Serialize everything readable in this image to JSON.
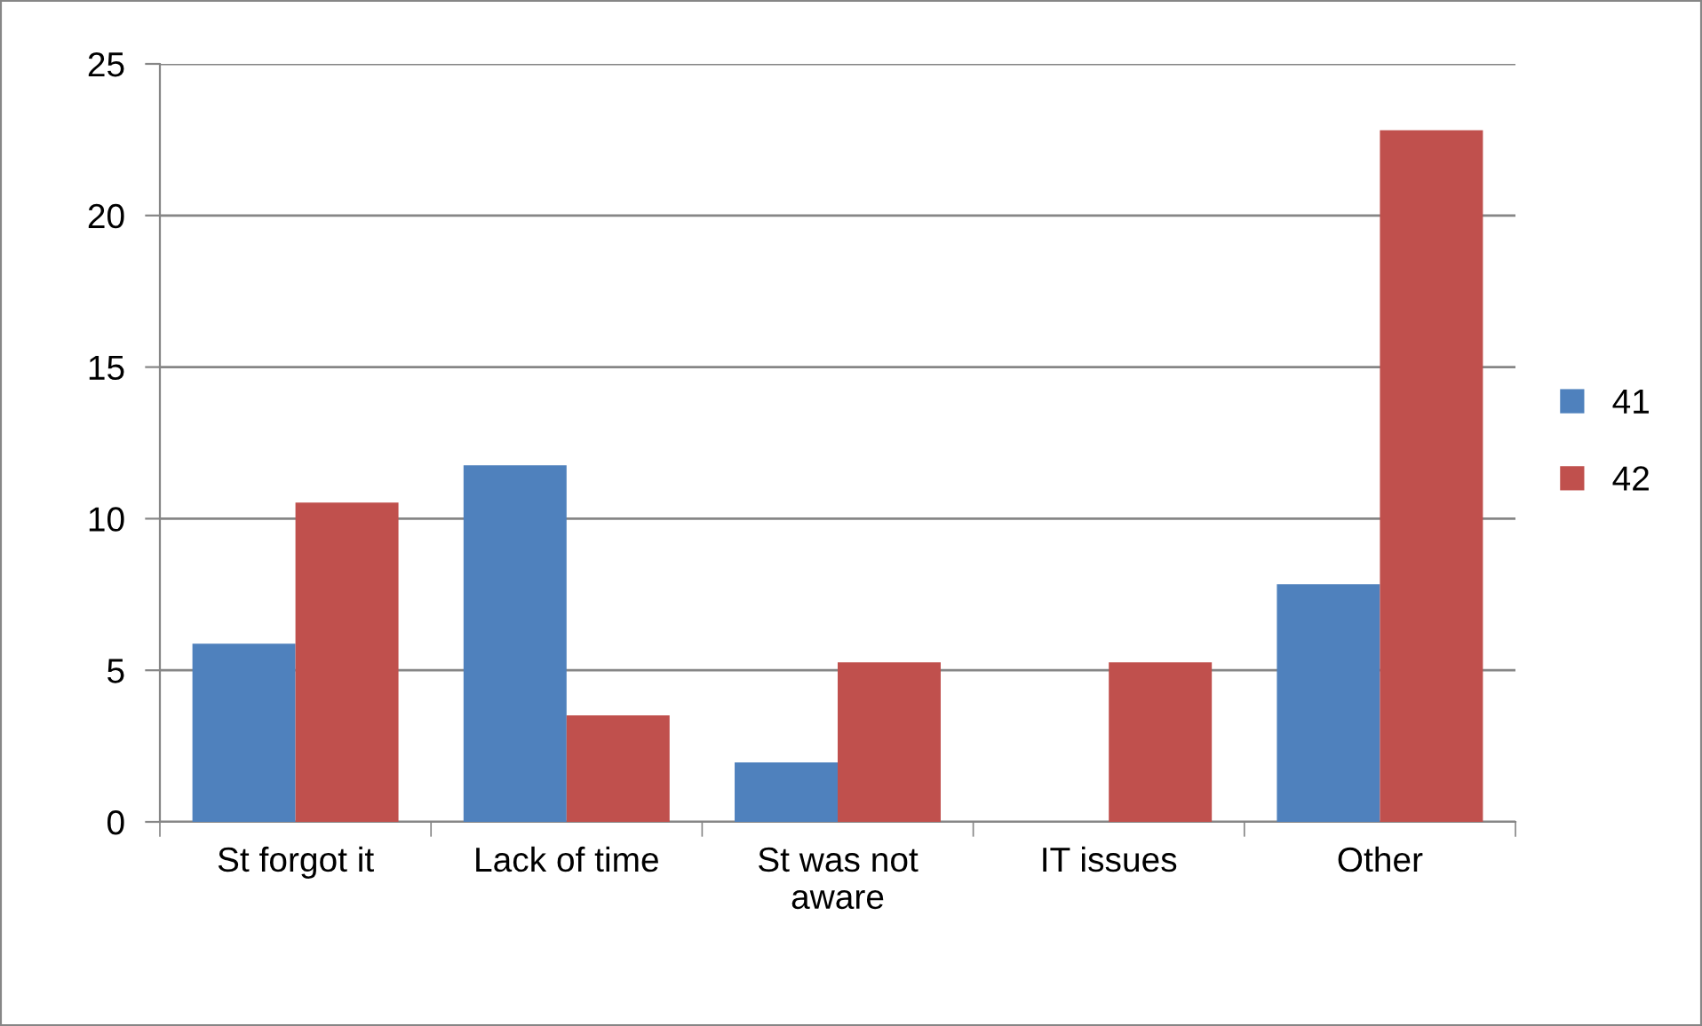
{
  "chart_data": {
    "type": "bar",
    "categories": [
      "St forgot it",
      "Lack of time",
      "St was not\naware",
      "IT issues",
      "Other"
    ],
    "series": [
      {
        "name": "41",
        "color": "#4f81bd",
        "values": [
          5.88,
          11.76,
          1.96,
          0,
          7.84
        ]
      },
      {
        "name": "42",
        "color": "#c0504d",
        "values": [
          10.53,
          3.51,
          5.26,
          5.26,
          22.81
        ]
      }
    ],
    "ylim": [
      0,
      25
    ],
    "yticks": [
      0,
      5,
      10,
      15,
      20,
      25
    ],
    "grid": "y",
    "legend": "right"
  }
}
